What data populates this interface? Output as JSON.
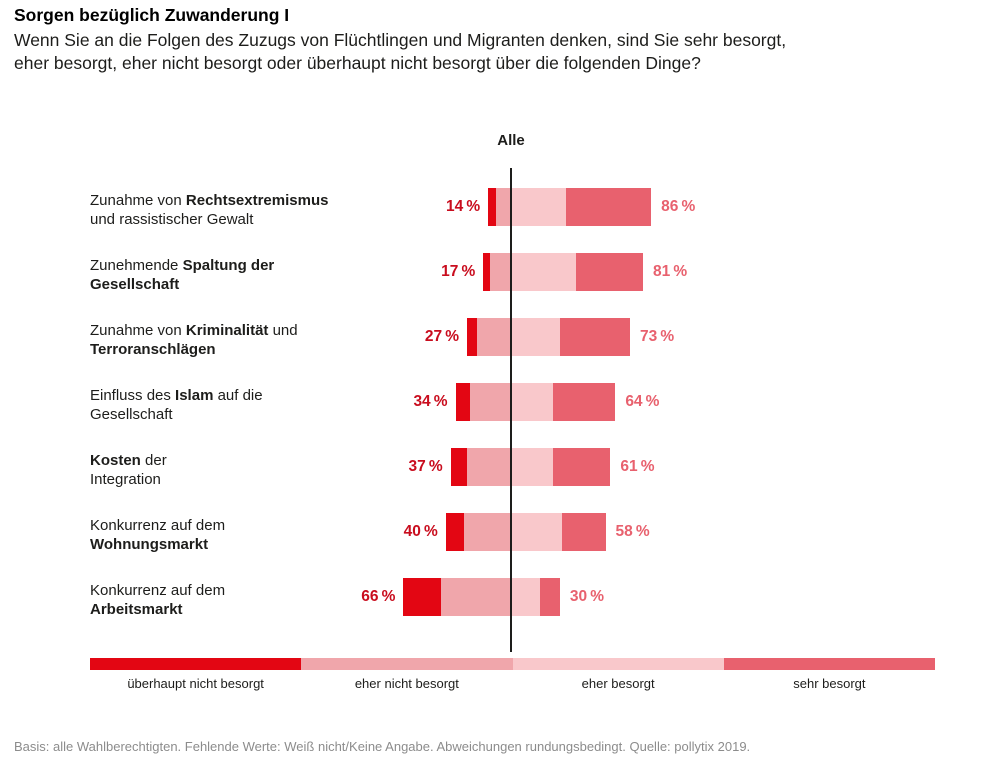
{
  "header": {
    "title": "Sorgen bezüglich Zuwanderung I",
    "subtitle_line1": "Wenn Sie an die Folgen des Zuzugs von Flüchtlingen und Migranten denken, sind Sie sehr besorgt,",
    "subtitle_line2": "eher besorgt, eher nicht besorgt oder überhaupt nicht besorgt über die folgenden Dinge?"
  },
  "colors": {
    "left_value_label": "#c90d1e",
    "right_value_label": "#e8616e",
    "axis": "#1d1d1b"
  },
  "chart_data": {
    "type": "bar",
    "variant": "diverging-stacked-horizontal",
    "column_header": "Alle",
    "unit": "%",
    "legend_position": "bottom",
    "axis": {
      "center_value": 0,
      "orientation": "vertical-center-line"
    },
    "legend": [
      {
        "key": "ueberhaupt_nicht",
        "label": "überhaupt nicht besorgt",
        "color": "#e30613"
      },
      {
        "key": "eher_nicht",
        "label": "eher nicht besorgt",
        "color": "#f0a6ab"
      },
      {
        "key": "eher",
        "label": "eher besorgt",
        "color": "#f9c8cb"
      },
      {
        "key": "sehr",
        "label": "sehr besorgt",
        "color": "#e8616e"
      }
    ],
    "rows": [
      {
        "label_lines": [
          [
            {
              "text": "Zunahme von ",
              "bold": false
            },
            {
              "text": "Rechtsextremismus",
              "bold": true
            }
          ],
          [
            {
              "text": "und rassistischer Gewalt",
              "bold": false
            }
          ]
        ],
        "not_worried_total": 14,
        "worried_total": 86,
        "segments": {
          "ueberhaupt_nicht": 5,
          "eher_nicht": 9,
          "eher": 34,
          "sehr": 52
        }
      },
      {
        "label_lines": [
          [
            {
              "text": "Zunehmende ",
              "bold": false
            },
            {
              "text": "Spaltung der",
              "bold": true
            }
          ],
          [
            {
              "text": "Gesellschaft",
              "bold": true
            }
          ]
        ],
        "not_worried_total": 17,
        "worried_total": 81,
        "segments": {
          "ueberhaupt_nicht": 4,
          "eher_nicht": 13,
          "eher": 40,
          "sehr": 41
        }
      },
      {
        "label_lines": [
          [
            {
              "text": "Zunahme von ",
              "bold": false
            },
            {
              "text": "Kriminalität",
              "bold": true
            },
            {
              "text": " und",
              "bold": false
            }
          ],
          [
            {
              "text": "Terroranschlägen",
              "bold": true
            }
          ]
        ],
        "not_worried_total": 27,
        "worried_total": 73,
        "segments": {
          "ueberhaupt_nicht": 6,
          "eher_nicht": 21,
          "eher": 30,
          "sehr": 43
        }
      },
      {
        "label_lines": [
          [
            {
              "text": "Einfluss des ",
              "bold": false
            },
            {
              "text": "Islam",
              "bold": true
            },
            {
              "text": " auf die",
              "bold": false
            }
          ],
          [
            {
              "text": "Gesellschaft",
              "bold": false
            }
          ]
        ],
        "not_worried_total": 34,
        "worried_total": 64,
        "segments": {
          "ueberhaupt_nicht": 9,
          "eher_nicht": 25,
          "eher": 26,
          "sehr": 38
        }
      },
      {
        "label_lines": [
          [
            {
              "text": "Kosten",
              "bold": true
            },
            {
              "text": " der",
              "bold": false
            }
          ],
          [
            {
              "text": "Integration",
              "bold": false
            }
          ]
        ],
        "not_worried_total": 37,
        "worried_total": 61,
        "segments": {
          "ueberhaupt_nicht": 10,
          "eher_nicht": 27,
          "eher": 26,
          "sehr": 35
        }
      },
      {
        "label_lines": [
          [
            {
              "text": "Konkurrenz auf dem",
              "bold": false
            }
          ],
          [
            {
              "text": "Wohnungsmarkt",
              "bold": true
            }
          ]
        ],
        "not_worried_total": 40,
        "worried_total": 58,
        "segments": {
          "ueberhaupt_nicht": 11,
          "eher_nicht": 29,
          "eher": 31,
          "sehr": 27
        }
      },
      {
        "label_lines": [
          [
            {
              "text": "Konkurrenz auf dem",
              "bold": false
            }
          ],
          [
            {
              "text": "Arbeitsmarkt",
              "bold": true
            }
          ]
        ],
        "not_worried_total": 66,
        "worried_total": 30,
        "segments": {
          "ueberhaupt_nicht": 23,
          "eher_nicht": 43,
          "eher": 18,
          "sehr": 12
        }
      }
    ]
  },
  "footer": {
    "note": "Basis: alle Wahlberechtigten. Fehlende Werte: Weiß nicht/Keine Angabe. Abweichungen rundungsbedingt. Quelle: pollytix 2019."
  }
}
